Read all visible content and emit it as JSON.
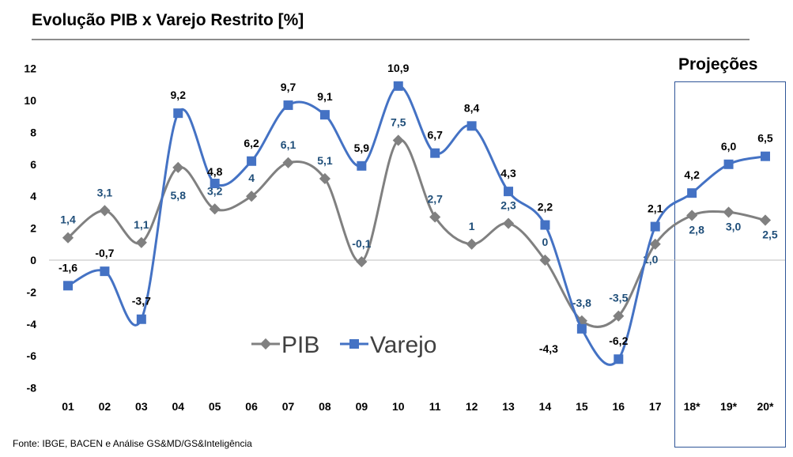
{
  "chart_data": {
    "type": "line",
    "title": "Evolução PIB x Varejo Restrito [%]",
    "annotation": "Projeções",
    "source": "Fonte: IBGE, BACEN  e Análise GS&MD/GS&Inteligência",
    "categories": [
      "01",
      "02",
      "03",
      "04",
      "05",
      "06",
      "07",
      "08",
      "09",
      "10",
      "11",
      "12",
      "13",
      "14",
      "15",
      "16",
      "17",
      "18*",
      "19*",
      "20*"
    ],
    "ylim": [
      -8,
      12
    ],
    "yticks": [
      12,
      10,
      8,
      6,
      4,
      2,
      0,
      -2,
      -4,
      -6,
      -8
    ],
    "legend_position": "center",
    "series": [
      {
        "name": "PIB",
        "color": "#808080",
        "label_color": "#1F4E79",
        "marker": "diamond",
        "values": [
          1.4,
          3.1,
          1.1,
          5.8,
          3.2,
          4,
          6.1,
          5.1,
          -0.1,
          7.5,
          2.7,
          1,
          2.3,
          0,
          -3.8,
          -3.5,
          1.0,
          2.8,
          3.0,
          2.5
        ],
        "labels": [
          "1,4",
          "3,1",
          "1,1",
          "5,8",
          "3,2",
          "4",
          "6,1",
          "5,1",
          "-0,1",
          "7,5",
          "2,7",
          "1",
          "2,3",
          "0",
          "-3,8",
          "-3,5",
          "1,0",
          "2,8",
          "3,0",
          "2,5"
        ]
      },
      {
        "name": "Varejo",
        "color": "#4472C4",
        "label_color": "#000000",
        "marker": "square",
        "values": [
          -1.6,
          -0.7,
          -3.7,
          9.2,
          4.8,
          6.2,
          9.7,
          9.1,
          5.9,
          10.9,
          6.7,
          8.4,
          4.3,
          2.2,
          -4.3,
          -6.2,
          2.1,
          4.2,
          6.0,
          6.5
        ],
        "labels": [
          "-1,6",
          "-0,7",
          "-3,7",
          "9,2",
          "4,8",
          "6,2",
          "9,7",
          "9,1",
          "5,9",
          "10,9",
          "6,7",
          "8,4",
          "4,3",
          "2,2",
          "-4,3",
          "-6,2",
          "2,1",
          "4,2",
          "6,0",
          "6,5"
        ]
      }
    ]
  }
}
